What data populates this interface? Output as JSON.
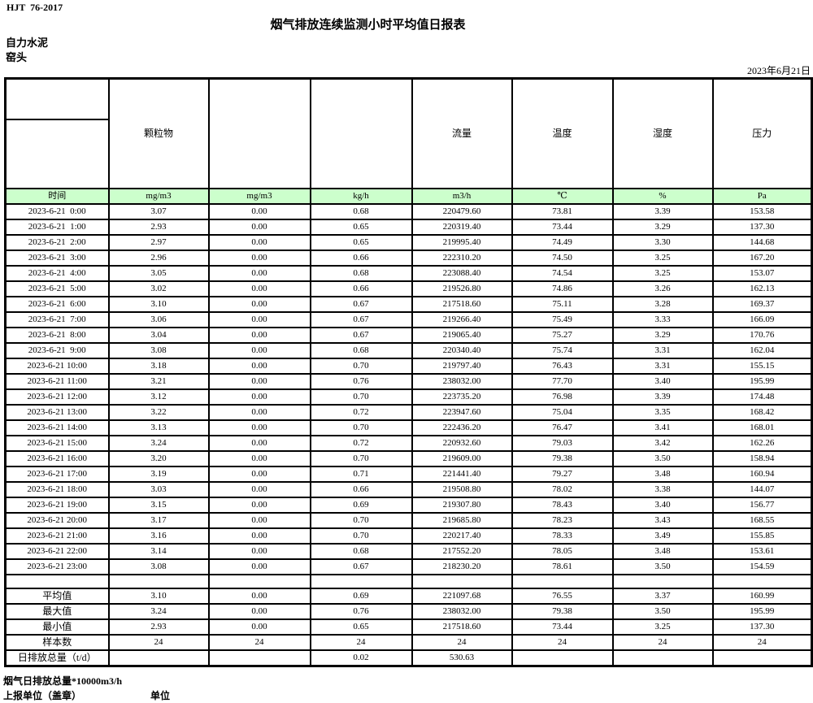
{
  "page": {
    "doc_code": "HJT  76-2017",
    "title": "烟气排放连续监测小时平均值日报表",
    "company": "自力水泥",
    "station": "窑头",
    "date": "2023年6月21日"
  },
  "table": {
    "header_groups": [
      "",
      "颗粒物",
      "",
      "",
      "流量",
      "温度",
      "湿度",
      "压力"
    ],
    "units": [
      "时间",
      "mg/m3",
      "mg/m3",
      "kg/h",
      "m3/h",
      "℃",
      "%",
      "Pa"
    ],
    "rows": [
      [
        "2023-6-21  0:00",
        "3.07",
        "0.00",
        "0.68",
        "220479.60",
        "73.81",
        "3.39",
        "153.58"
      ],
      [
        "2023-6-21  1:00",
        "2.93",
        "0.00",
        "0.65",
        "220319.40",
        "73.44",
        "3.29",
        "137.30"
      ],
      [
        "2023-6-21  2:00",
        "2.97",
        "0.00",
        "0.65",
        "219995.40",
        "74.49",
        "3.30",
        "144.68"
      ],
      [
        "2023-6-21  3:00",
        "2.96",
        "0.00",
        "0.66",
        "222310.20",
        "74.50",
        "3.25",
        "167.20"
      ],
      [
        "2023-6-21  4:00",
        "3.05",
        "0.00",
        "0.68",
        "223088.40",
        "74.54",
        "3.25",
        "153.07"
      ],
      [
        "2023-6-21  5:00",
        "3.02",
        "0.00",
        "0.66",
        "219526.80",
        "74.86",
        "3.26",
        "162.13"
      ],
      [
        "2023-6-21  6:00",
        "3.10",
        "0.00",
        "0.67",
        "217518.60",
        "75.11",
        "3.28",
        "169.37"
      ],
      [
        "2023-6-21  7:00",
        "3.06",
        "0.00",
        "0.67",
        "219266.40",
        "75.49",
        "3.33",
        "166.09"
      ],
      [
        "2023-6-21  8:00",
        "3.04",
        "0.00",
        "0.67",
        "219065.40",
        "75.27",
        "3.29",
        "170.76"
      ],
      [
        "2023-6-21  9:00",
        "3.08",
        "0.00",
        "0.68",
        "220340.40",
        "75.74",
        "3.31",
        "162.04"
      ],
      [
        "2023-6-21 10:00",
        "3.18",
        "0.00",
        "0.70",
        "219797.40",
        "76.43",
        "3.31",
        "155.15"
      ],
      [
        "2023-6-21 11:00",
        "3.21",
        "0.00",
        "0.76",
        "238032.00",
        "77.70",
        "3.40",
        "195.99"
      ],
      [
        "2023-6-21 12:00",
        "3.12",
        "0.00",
        "0.70",
        "223735.20",
        "76.98",
        "3.39",
        "174.48"
      ],
      [
        "2023-6-21 13:00",
        "3.22",
        "0.00",
        "0.72",
        "223947.60",
        "75.04",
        "3.35",
        "168.42"
      ],
      [
        "2023-6-21 14:00",
        "3.13",
        "0.00",
        "0.70",
        "222436.20",
        "76.47",
        "3.41",
        "168.01"
      ],
      [
        "2023-6-21 15:00",
        "3.24",
        "0.00",
        "0.72",
        "220932.60",
        "79.03",
        "3.42",
        "162.26"
      ],
      [
        "2023-6-21 16:00",
        "3.20",
        "0.00",
        "0.70",
        "219609.00",
        "79.38",
        "3.50",
        "158.94"
      ],
      [
        "2023-6-21 17:00",
        "3.19",
        "0.00",
        "0.71",
        "221441.40",
        "79.27",
        "3.48",
        "160.94"
      ],
      [
        "2023-6-21 18:00",
        "3.03",
        "0.00",
        "0.66",
        "219508.80",
        "78.02",
        "3.38",
        "144.07"
      ],
      [
        "2023-6-21 19:00",
        "3.15",
        "0.00",
        "0.69",
        "219307.80",
        "78.43",
        "3.40",
        "156.77"
      ],
      [
        "2023-6-21 20:00",
        "3.17",
        "0.00",
        "0.70",
        "219685.80",
        "78.23",
        "3.43",
        "168.55"
      ],
      [
        "2023-6-21 21:00",
        "3.16",
        "0.00",
        "0.70",
        "220217.40",
        "78.33",
        "3.49",
        "155.85"
      ],
      [
        "2023-6-21 22:00",
        "3.14",
        "0.00",
        "0.68",
        "217552.20",
        "78.05",
        "3.48",
        "153.61"
      ],
      [
        "2023-6-21 23:00",
        "3.08",
        "0.00",
        "0.67",
        "218230.20",
        "78.61",
        "3.50",
        "154.59"
      ]
    ],
    "summary": [
      [
        "平均值",
        "3.10",
        "0.00",
        "0.69",
        "221097.68",
        "76.55",
        "3.37",
        "160.99"
      ],
      [
        "最大值",
        "3.24",
        "0.00",
        "0.76",
        "238032.00",
        "79.38",
        "3.50",
        "195.99"
      ],
      [
        "最小值",
        "2.93",
        "0.00",
        "0.65",
        "217518.60",
        "73.44",
        "3.25",
        "137.30"
      ],
      [
        "样本数",
        "24",
        "24",
        "24",
        "24",
        "24",
        "24",
        "24"
      ],
      [
        "日排放总量（t/d）",
        "",
        "",
        "0.02",
        "530.63",
        "",
        "",
        ""
      ]
    ]
  },
  "footer": {
    "note": "烟气日排放总量*10000m3/h",
    "report_unit": "上报单位（盖章）",
    "unit_label": "单位"
  },
  "colors": {
    "units_row_green": "#ccffcc",
    "border": "#000000"
  }
}
